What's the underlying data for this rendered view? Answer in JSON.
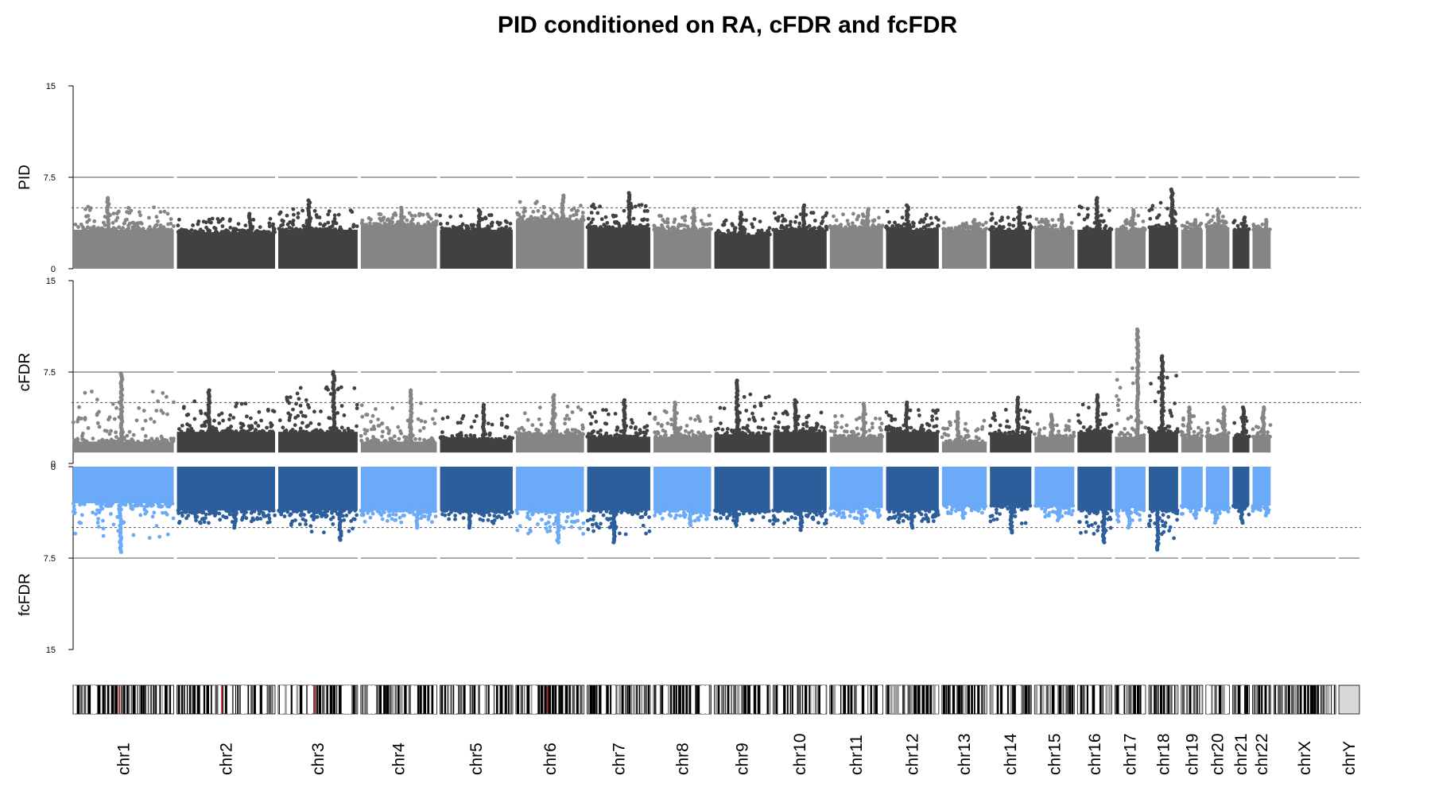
{
  "chart_data": {
    "type": "scatter",
    "title": "PID conditioned on RA, cFDR and fcFDR",
    "panels": [
      {
        "name": "PID",
        "ticks": [
          "15",
          "7.5",
          "0"
        ],
        "ylim": [
          0,
          15
        ],
        "direction": "up",
        "palette": "gray",
        "threshold_solid": 7.5,
        "threshold_dotted": 5
      },
      {
        "name": "cFDR",
        "ticks": [
          "15",
          "7.5",
          "0"
        ],
        "ylim": [
          0,
          15
        ],
        "direction": "up",
        "palette": "gray",
        "threshold_solid": 7.5,
        "threshold_dotted": 5
      },
      {
        "name": "fcFDR",
        "ticks": [
          "0",
          "7.5",
          "15"
        ],
        "ylim": [
          0,
          15
        ],
        "direction": "down",
        "palette": "blue",
        "threshold_solid": 7.5,
        "threshold_dotted": 5
      }
    ],
    "colors": {
      "gray_light": "#858585",
      "gray_dark": "#414141",
      "blue_light": "#6aaaf8",
      "blue_dark": "#2c5e9c",
      "threshold_line": "#555555",
      "axis": "#000000"
    },
    "chromosomes": [
      {
        "name": "chr1",
        "shade": "light",
        "start": 0,
        "end": 249,
        "pid_base": 3.2,
        "pid_peak": 5.8,
        "cfdr_base": 1.8,
        "cfdr_peak": 7.4,
        "fcfdr_base": 3.0,
        "fcfdr_peak": 7.0
      },
      {
        "name": "chr2",
        "shade": "dark",
        "start": 249,
        "end": 492,
        "pid_base": 3.0,
        "pid_peak": 4.5,
        "cfdr_base": 2.6,
        "cfdr_peak": 6.0,
        "fcfdr_base": 3.6,
        "fcfdr_peak": 5.0
      },
      {
        "name": "chr3",
        "shade": "dark",
        "start": 492,
        "end": 690,
        "pid_base": 3.2,
        "pid_peak": 5.6,
        "cfdr_base": 2.6,
        "cfdr_peak": 7.5,
        "fcfdr_base": 3.6,
        "fcfdr_peak": 6.0
      },
      {
        "name": "chr4",
        "shade": "light",
        "start": 690,
        "end": 880,
        "pid_base": 3.6,
        "pid_peak": 5.0,
        "cfdr_base": 1.8,
        "cfdr_peak": 6.0,
        "fcfdr_base": 3.6,
        "fcfdr_peak": 5.0
      },
      {
        "name": "chr5",
        "shade": "dark",
        "start": 880,
        "end": 1062,
        "pid_base": 3.2,
        "pid_peak": 4.8,
        "cfdr_base": 2.0,
        "cfdr_peak": 4.8,
        "fcfdr_base": 3.6,
        "fcfdr_peak": 5.0
      },
      {
        "name": "chr6",
        "shade": "light",
        "start": 1062,
        "end": 1233,
        "pid_base": 4.0,
        "pid_peak": 6.0,
        "cfdr_base": 2.4,
        "cfdr_peak": 5.6,
        "fcfdr_base": 3.6,
        "fcfdr_peak": 6.2
      },
      {
        "name": "chr7",
        "shade": "dark",
        "start": 1233,
        "end": 1392,
        "pid_base": 3.4,
        "pid_peak": 6.2,
        "cfdr_base": 2.2,
        "cfdr_peak": 5.2,
        "fcfdr_base": 3.6,
        "fcfdr_peak": 6.2
      },
      {
        "name": "chr8",
        "shade": "light",
        "start": 1392,
        "end": 1538,
        "pid_base": 3.2,
        "pid_peak": 4.9,
        "cfdr_base": 2.2,
        "cfdr_peak": 5.0,
        "fcfdr_base": 3.6,
        "fcfdr_peak": 4.8
      },
      {
        "name": "chr9",
        "shade": "dark",
        "start": 1538,
        "end": 1679,
        "pid_base": 2.8,
        "pid_peak": 4.6,
        "cfdr_base": 2.4,
        "cfdr_peak": 6.8,
        "fcfdr_base": 3.6,
        "fcfdr_peak": 4.8
      },
      {
        "name": "chr10",
        "shade": "dark",
        "start": 1679,
        "end": 1815,
        "pid_base": 3.2,
        "pid_peak": 5.2,
        "cfdr_base": 2.6,
        "cfdr_peak": 5.2,
        "fcfdr_base": 3.6,
        "fcfdr_peak": 5.2
      },
      {
        "name": "chr11",
        "shade": "light",
        "start": 1815,
        "end": 1950,
        "pid_base": 3.4,
        "pid_peak": 4.9,
        "cfdr_base": 2.2,
        "cfdr_peak": 4.9,
        "fcfdr_base": 3.4,
        "fcfdr_peak": 4.6
      },
      {
        "name": "chr12",
        "shade": "dark",
        "start": 1950,
        "end": 2084,
        "pid_base": 3.2,
        "pid_peak": 5.2,
        "cfdr_base": 2.6,
        "cfdr_peak": 5.0,
        "fcfdr_base": 3.6,
        "fcfdr_peak": 5.0
      },
      {
        "name": "chr13",
        "shade": "light",
        "start": 2084,
        "end": 2199,
        "pid_base": 3.2,
        "pid_peak": 4.0,
        "cfdr_base": 1.8,
        "cfdr_peak": 4.2,
        "fcfdr_base": 3.2,
        "fcfdr_peak": 4.2
      },
      {
        "name": "chr14",
        "shade": "dark",
        "start": 2199,
        "end": 2306,
        "pid_base": 3.2,
        "pid_peak": 5.0,
        "cfdr_base": 2.4,
        "cfdr_peak": 5.4,
        "fcfdr_base": 3.2,
        "fcfdr_peak": 5.4
      },
      {
        "name": "chr15",
        "shade": "light",
        "start": 2306,
        "end": 2409,
        "pid_base": 3.2,
        "pid_peak": 4.4,
        "cfdr_base": 2.2,
        "cfdr_peak": 4.0,
        "fcfdr_base": 3.2,
        "fcfdr_peak": 4.4
      },
      {
        "name": "chr16",
        "shade": "dark",
        "start": 2409,
        "end": 2499,
        "pid_base": 3.2,
        "pid_peak": 5.8,
        "cfdr_base": 2.6,
        "cfdr_peak": 5.6,
        "fcfdr_base": 3.6,
        "fcfdr_peak": 6.2
      },
      {
        "name": "chr17",
        "shade": "light",
        "start": 2499,
        "end": 2580,
        "pid_base": 3.2,
        "pid_peak": 4.8,
        "cfdr_base": 2.2,
        "cfdr_peak": 11.0,
        "fcfdr_base": 3.4,
        "fcfdr_peak": 5.0
      },
      {
        "name": "chr18",
        "shade": "dark",
        "start": 2580,
        "end": 2658,
        "pid_base": 3.4,
        "pid_peak": 6.5,
        "cfdr_base": 2.6,
        "cfdr_peak": 8.8,
        "fcfdr_base": 3.6,
        "fcfdr_peak": 6.8
      },
      {
        "name": "chr19",
        "shade": "light",
        "start": 2658,
        "end": 2717,
        "pid_base": 3.2,
        "pid_peak": 4.0,
        "cfdr_base": 2.2,
        "cfdr_peak": 4.6,
        "fcfdr_base": 3.2,
        "fcfdr_peak": 4.2
      },
      {
        "name": "chr20",
        "shade": "light",
        "start": 2717,
        "end": 2781,
        "pid_base": 3.4,
        "pid_peak": 4.8,
        "cfdr_base": 2.2,
        "cfdr_peak": 4.6,
        "fcfdr_base": 3.4,
        "fcfdr_peak": 4.6
      },
      {
        "name": "chr21",
        "shade": "dark",
        "start": 2781,
        "end": 2829,
        "pid_base": 3.2,
        "pid_peak": 4.2,
        "cfdr_base": 2.2,
        "cfdr_peak": 4.6,
        "fcfdr_base": 3.2,
        "fcfdr_peak": 4.6
      },
      {
        "name": "chr22",
        "shade": "light",
        "start": 2829,
        "end": 2880,
        "pid_base": 3.2,
        "pid_peak": 4.0,
        "cfdr_base": 2.2,
        "cfdr_peak": 4.6,
        "fcfdr_base": 3.2,
        "fcfdr_peak": 4.0
      },
      {
        "name": "chrX",
        "shade": "none",
        "start": 2880,
        "end": 3036
      },
      {
        "name": "chrY",
        "shade": "none",
        "start": 3036,
        "end": 3093
      }
    ],
    "x_range": [
      0,
      3093
    ]
  }
}
